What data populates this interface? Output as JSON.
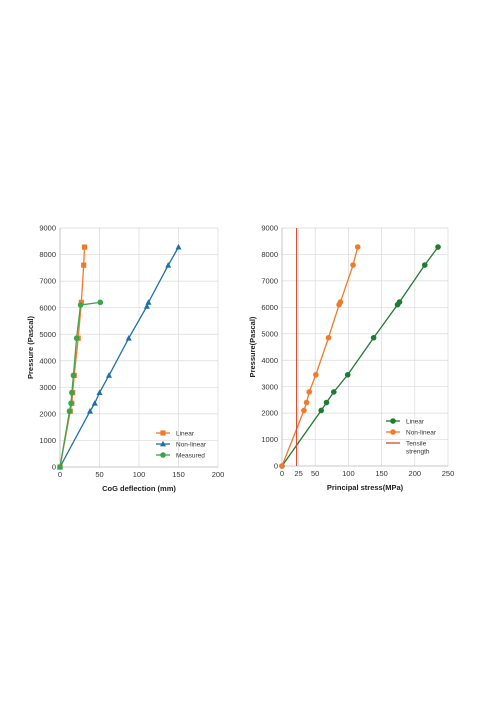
{
  "colors": {
    "linear_orange": "#f07a2a",
    "nonlinear_blue": "#1f6fa8",
    "measured_green": "#3aa64a",
    "green_dark": "#1f7a32",
    "tensile_red": "#d2472a"
  },
  "chart_data": [
    {
      "type": "scatter",
      "xlabel": "CoG deflection (mm)",
      "ylabel": "Pressure (Pascal)",
      "xlim": [
        0,
        200
      ],
      "ylim": [
        0,
        9000
      ],
      "xticks": [
        0,
        50,
        100,
        150,
        200
      ],
      "yticks": [
        0,
        1000,
        2000,
        3000,
        4000,
        5000,
        6000,
        7000,
        8000,
        9000
      ],
      "grid": true,
      "legend_position": "bottom-right",
      "series": [
        {
          "name": "Linear",
          "color": "#f07a2a",
          "marker": "square",
          "points": [
            [
              0,
              0
            ],
            [
              13,
              2100
            ],
            [
              15,
              2400
            ],
            [
              16,
              2800
            ],
            [
              18,
              3450
            ],
            [
              23,
              4850
            ],
            [
              27,
              6200
            ],
            [
              30,
              7600
            ],
            [
              31,
              8280
            ]
          ]
        },
        {
          "name": "Non-linear",
          "color": "#1f6fa8",
          "marker": "triangle",
          "points": [
            [
              0,
              0
            ],
            [
              38,
              2100
            ],
            [
              44,
              2400
            ],
            [
              50,
              2800
            ],
            [
              62,
              3450
            ],
            [
              87,
              4850
            ],
            [
              110,
              6050
            ],
            [
              112,
              6200
            ],
            [
              137,
              7600
            ],
            [
              150,
              8280
            ]
          ]
        },
        {
          "name": "Measured",
          "color": "#3aa64a",
          "marker": "circle",
          "points": [
            [
              0,
              0
            ],
            [
              12,
              2100
            ],
            [
              14,
              2400
            ],
            [
              15,
              2800
            ],
            [
              17,
              3450
            ],
            [
              21,
              4850
            ],
            [
              26,
              6100
            ],
            [
              51,
              6200
            ]
          ]
        }
      ]
    },
    {
      "type": "line",
      "xlabel": "Principal stress(MPa)",
      "ylabel": "Pressure(Pascal)",
      "xlim": [
        0,
        250
      ],
      "ylim": [
        0,
        9000
      ],
      "xticks": [
        0,
        25,
        50,
        100,
        150,
        200,
        250
      ],
      "yticks": [
        0,
        1000,
        2000,
        3000,
        4000,
        5000,
        6000,
        7000,
        8000,
        9000
      ],
      "grid": true,
      "legend_position": "bottom-right",
      "series": [
        {
          "name": "Linear",
          "color": "#1f7a32",
          "marker": "circle",
          "points": [
            [
              0,
              0
            ],
            [
              59,
              2100
            ],
            [
              67,
              2400
            ],
            [
              78,
              2800
            ],
            [
              99,
              3450
            ],
            [
              138,
              4850
            ],
            [
              174,
              6100
            ],
            [
              177,
              6200
            ],
            [
              215,
              7600
            ],
            [
              235,
              8280
            ]
          ]
        },
        {
          "name": "Non-linear",
          "color": "#f07a2a",
          "marker": "circle",
          "points": [
            [
              0,
              0
            ],
            [
              33,
              2100
            ],
            [
              37,
              2400
            ],
            [
              41,
              2800
            ],
            [
              51,
              3450
            ],
            [
              70,
              4850
            ],
            [
              86,
              6100
            ],
            [
              88,
              6200
            ],
            [
              107,
              7600
            ],
            [
              114,
              8280
            ]
          ]
        },
        {
          "name": "Tensile strength",
          "legend_lines": [
            "Tensile",
            "strength"
          ],
          "color": "#d2472a",
          "marker": "none",
          "vertical_x": 22
        }
      ]
    }
  ]
}
